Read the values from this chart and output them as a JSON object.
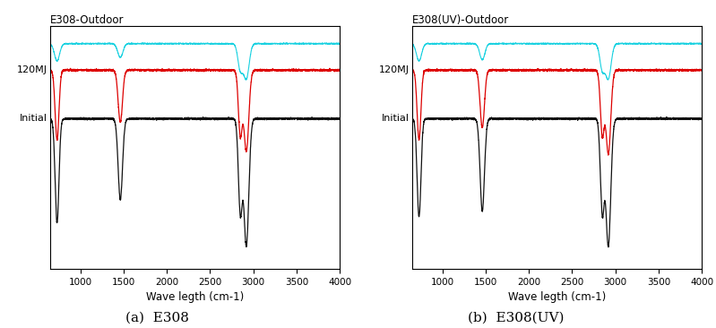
{
  "subplot1_title": "E308-Outdoor",
  "subplot2_title": "E308(UV)-Outdoor",
  "xlabel": "Wave legth (cm-1)",
  "caption1": "(a)  E308",
  "caption2": "(b)  E308(UV)",
  "xmin": 650,
  "xmax": 4000,
  "xticks": [
    1000,
    1500,
    2000,
    2500,
    3000,
    3500,
    4000
  ],
  "label_120MJ": "120MJ",
  "label_Initial": "Initial",
  "color_red": "#dd0000",
  "color_black": "#111111",
  "color_cyan": "#00ccdd",
  "background": "#ffffff",
  "ymin": -1.0,
  "ymax": 1.1,
  "baseline_red": 0.72,
  "baseline_black": 0.3,
  "baseline_cyan": 0.95
}
